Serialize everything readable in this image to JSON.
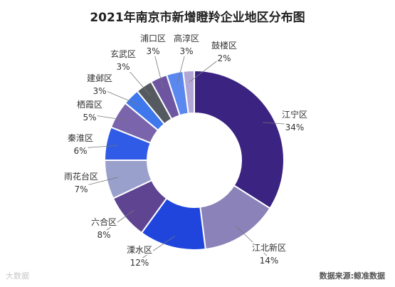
{
  "chart_data": {
    "type": "pie",
    "title": "2021年南京市新增瞪羚企业地区分布图",
    "donut": true,
    "slices": [
      {
        "name": "江宁区",
        "value": 34,
        "label": "34%",
        "color": "#3b2381"
      },
      {
        "name": "江北新区",
        "value": 14,
        "label": "14%",
        "color": "#8a82b8"
      },
      {
        "name": "溧水区",
        "value": 12,
        "label": "12%",
        "color": "#1f45dd"
      },
      {
        "name": "六合区",
        "value": 8,
        "label": "8%",
        "color": "#5e4491"
      },
      {
        "name": "雨花台区",
        "value": 7,
        "label": "7%",
        "color": "#9aa0cc"
      },
      {
        "name": "秦淮区",
        "value": 6,
        "label": "6%",
        "color": "#2f5be6"
      },
      {
        "name": "栖霞区",
        "value": 5,
        "label": "5%",
        "color": "#7a64ac"
      },
      {
        "name": "建邺区",
        "value": 3,
        "label": "3%",
        "color": "#3f78ec"
      },
      {
        "name": "玄武区",
        "value": 3,
        "label": "3%",
        "color": "#555a60"
      },
      {
        "name": "浦口区",
        "value": 3,
        "label": "3%",
        "color": "#6d55a2"
      },
      {
        "name": "高淳区",
        "value": 3,
        "label": "3%",
        "color": "#5b88ee"
      },
      {
        "name": "鼓楼区",
        "value": 2,
        "label": "2%",
        "color": "#b2a6d6"
      }
    ]
  },
  "source": "数据来源:鲸准数据",
  "watermark": "大数据"
}
